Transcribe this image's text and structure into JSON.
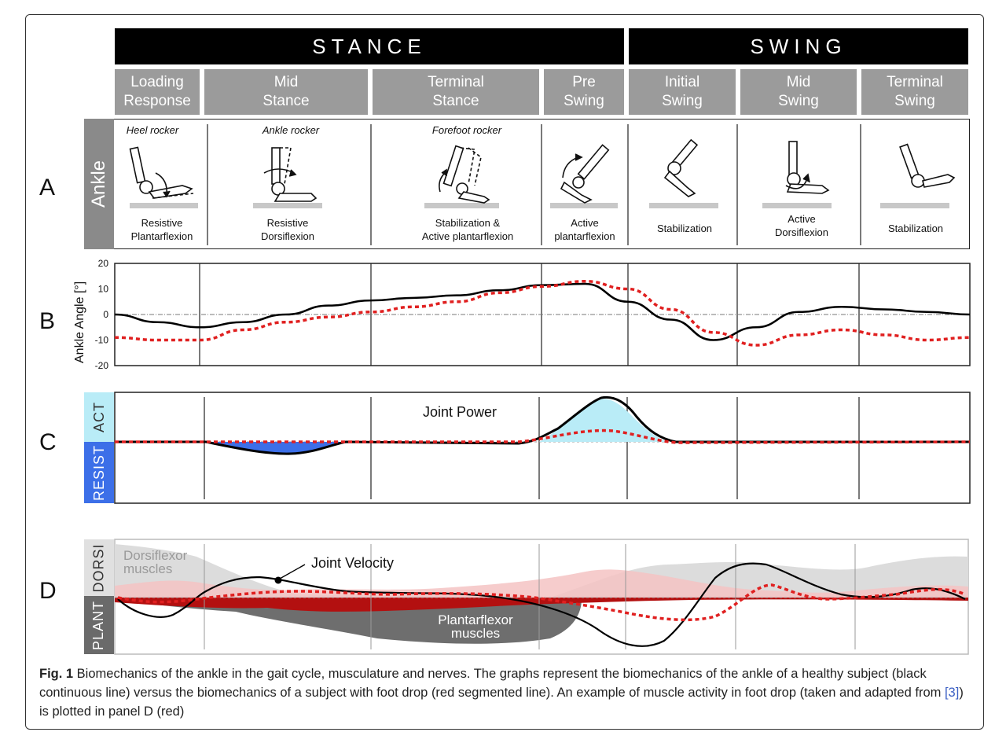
{
  "phases": {
    "stance": "STANCE",
    "swing": "SWING"
  },
  "subphases": [
    {
      "label": "Loading\nResponse"
    },
    {
      "label": "Mid\nStance"
    },
    {
      "label": "Terminal\nStance"
    },
    {
      "label": "Pre\nSwing"
    },
    {
      "label": "Initial\nSwing"
    },
    {
      "label": "Mid\nSwing"
    },
    {
      "label": "Terminal\nSwing"
    }
  ],
  "panels": {
    "a": "A",
    "b": "B",
    "c": "C",
    "d": "D"
  },
  "ankle": {
    "side_label": "Ankle",
    "rockers": [
      "Heel rocker",
      "Ankle rocker",
      "Forefoot rocker"
    ],
    "functions": [
      "Resistive\nPlantarflexion",
      "Resistive\nDorsiflexion",
      "Stabilization &\nActive plantarflexion",
      "Active\nplantarflexion",
      "Stabilization",
      "Active\nDorsiflexion",
      "Stabilization"
    ]
  },
  "panel_c": {
    "act": "ACT",
    "resist": "RESIST",
    "title": "Joint Power"
  },
  "panel_d": {
    "dorsi": "DORSI",
    "plant": "PLANT",
    "dorsi_muscles": "Dorsiflexor\nmuscles",
    "plant_muscles": "Plantarflexor\nmuscles",
    "velocity": "Joint Velocity"
  },
  "chart_data": {
    "type": "line",
    "title": "",
    "xlabel": "",
    "ylabel": "Ankle Angle [°]",
    "ylim": [
      -20,
      20
    ],
    "yticks": [
      "20",
      "10",
      "0",
      "-10",
      "-20"
    ],
    "x": [
      0,
      5,
      10,
      15,
      20,
      25,
      30,
      35,
      40,
      45,
      50,
      55,
      60,
      65,
      70,
      75,
      80,
      85,
      90,
      95,
      100
    ],
    "series": [
      {
        "name": "Healthy subject (black continuous line)",
        "color": "#000000",
        "values": [
          0,
          -3,
          -5,
          -3,
          0,
          3.5,
          5.5,
          6.5,
          7.5,
          9.5,
          11.5,
          12,
          5,
          -2,
          -10,
          -5,
          1,
          3,
          2,
          1,
          0
        ]
      },
      {
        "name": "Foot drop subject (red segmented line)",
        "color": "#e02020",
        "values": [
          -9,
          -10,
          -10,
          -6,
          -3,
          -1,
          1,
          3,
          5,
          8.5,
          11,
          13,
          10,
          2,
          -7,
          -12,
          -8,
          -6,
          -8,
          -10,
          -9
        ]
      }
    ]
  },
  "caption": {
    "fig": "Fig. 1",
    "text_before": " Biomechanics of the ankle in the gait cycle, musculature and nerves. The graphs represent the biomechanics of the ankle of a healthy subject (black continuous line) versus the biomechanics of a subject with foot drop (red segmented line). An example of muscle activity in foot drop (taken and adapted from ",
    "ref": "[3]",
    "text_after": ") is plotted in panel D (red)"
  }
}
